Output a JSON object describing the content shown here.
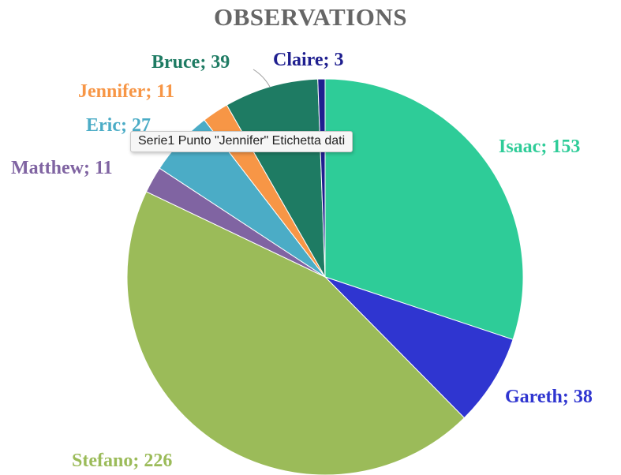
{
  "chart_data": {
    "type": "pie",
    "title": "OBSERVATIONS",
    "slices": [
      {
        "label": "Isaac; 153",
        "name": "Isaac",
        "value": 153,
        "color": "#2ecc98"
      },
      {
        "label": "Gareth; 38",
        "name": "Gareth",
        "value": 38,
        "color": "#2f35d0"
      },
      {
        "label": "Stefano; 226",
        "name": "Stefano",
        "value": 226,
        "color": "#9bbb59"
      },
      {
        "label": "Matthew; 11",
        "name": "Matthew",
        "value": 11,
        "color": "#8064a2"
      },
      {
        "label": "Eric; 27",
        "name": "Eric",
        "value": 27,
        "color": "#4bacc6"
      },
      {
        "label": "Jennifer; 11",
        "name": "Jennifer",
        "value": 11,
        "color": "#f79646"
      },
      {
        "label": "Bruce; 39",
        "name": "Bruce",
        "value": 39,
        "color": "#1e7b63"
      },
      {
        "label": "Claire; 3",
        "name": "Claire",
        "value": 3,
        "color": "#1f1f8f"
      }
    ],
    "label_colors": {
      "Isaac": "#2ecc98",
      "Gareth": "#2f35d0",
      "Stefano": "#9bbb59",
      "Matthew": "#8064a2",
      "Eric": "#4bacc6",
      "Jennifer": "#f79646",
      "Bruce": "#1e7b63",
      "Claire": "#1f1f8f"
    },
    "start_angle": "12 o'clock",
    "direction": "clockwise",
    "legend": "none"
  },
  "tooltip": {
    "text": "Serie1 Punto \"Jennifer\" Etichetta dati"
  }
}
